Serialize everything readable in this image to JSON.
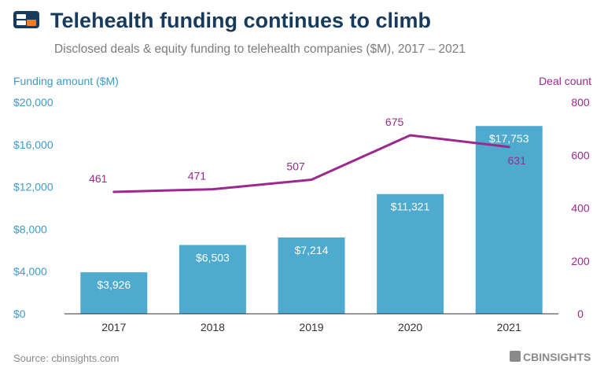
{
  "brand": {
    "logo_icon": "cb-insights-logo",
    "footer_logo": "CBINSIGHTS"
  },
  "colors": {
    "bar": "#4EAACF",
    "line": "#9C2A8E",
    "axis_left": "#3C9CC8",
    "axis_right": "#9C2A8E",
    "title": "#163B5C",
    "subtitle": "#7B7B7B",
    "grid": "#333333"
  },
  "chart_data": {
    "type": "bar",
    "title": "Telehealth funding continues to climb",
    "subtitle": "Disclosed deals & equity funding to telehealth companies ($M), 2017 – 2021",
    "categories": [
      "2017",
      "2018",
      "2019",
      "2020",
      "2021"
    ],
    "series": [
      {
        "name": "Funding amount ($M)",
        "type": "bar",
        "axis": "left",
        "values": [
          3926,
          6503,
          7214,
          11321,
          17753
        ],
        "labels": [
          "$3,926",
          "$6,503",
          "$7,214",
          "$11,321",
          "$17,753"
        ]
      },
      {
        "name": "Deal count",
        "type": "line",
        "axis": "right",
        "values": [
          461,
          471,
          507,
          675,
          631
        ],
        "labels": [
          "461",
          "471",
          "507",
          "675",
          "631"
        ]
      }
    ],
    "y_left": {
      "label": "Funding amount ($M)",
      "range": [
        0,
        20000
      ],
      "ticks": [
        0,
        4000,
        8000,
        12000,
        16000,
        20000
      ],
      "tick_labels": [
        "$0",
        "$4,000",
        "$8,000",
        "$12,000",
        "$16,000",
        "$20,000"
      ]
    },
    "y_right": {
      "label": "Deal count",
      "range": [
        0,
        800
      ],
      "ticks": [
        0,
        200,
        400,
        600,
        800
      ],
      "tick_labels": [
        "0",
        "200",
        "400",
        "600",
        "800"
      ]
    },
    "grid": false
  },
  "footer": {
    "source": "Source: cbinsights.com"
  }
}
